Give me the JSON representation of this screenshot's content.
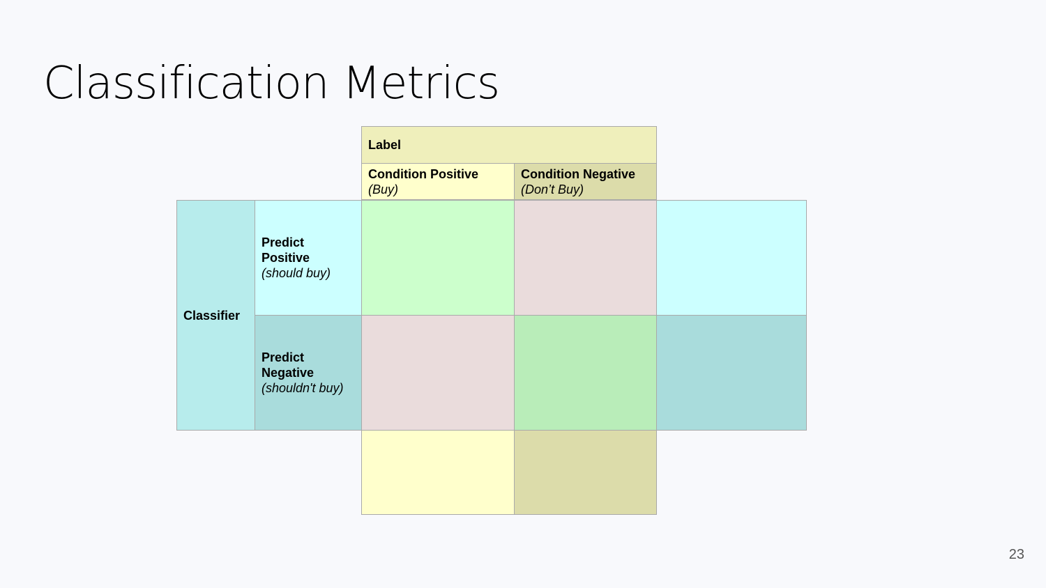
{
  "slide": {
    "title": "Classification Metrics",
    "page_number": "23"
  },
  "table": {
    "label_header": "Label",
    "condition_positive": {
      "title": "Condition Positive",
      "note": "(Buy)"
    },
    "condition_negative": {
      "title": "Condition Negative",
      "note": "(Don’t Buy)"
    },
    "classifier_header": "Classifier",
    "predict_positive": {
      "title_line1": "Predict",
      "title_line2": "Positive",
      "note": "(should buy)"
    },
    "predict_negative": {
      "title_line1": "Predict",
      "title_line2": "Negative",
      "note": "(shouldn't buy)"
    }
  },
  "colors": {
    "background": "#f8f9fc",
    "label_header": "#efefbb",
    "condition_positive": "#ffffcc",
    "condition_negative": "#dcdcaa",
    "classifier": "#b7ecec",
    "predict_positive": "#ccffff",
    "predict_negative": "#a9dcdc",
    "true_positive": "#ccffcc",
    "false_positive": "#eadcdc",
    "false_negative": "#eadcdc",
    "true_negative": "#b9edb9",
    "border": "#a9a9a9"
  }
}
